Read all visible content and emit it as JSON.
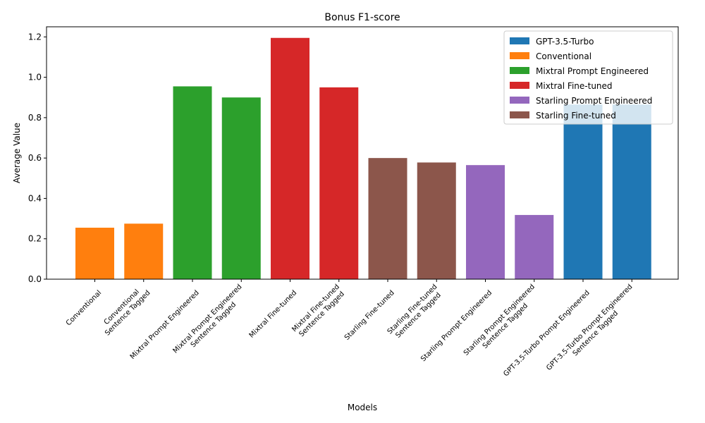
{
  "chart_data": {
    "type": "bar",
    "title": "Bonus F1-score",
    "xlabel": "Models",
    "ylabel": "Average Value",
    "ylim": [
      0,
      1.25
    ],
    "yticks": [
      "0.0",
      "0.2",
      "0.4",
      "0.6",
      "0.8",
      "1.0",
      "1.2"
    ],
    "ytick_values": [
      0,
      0.2,
      0.4,
      0.6,
      0.8,
      1.0,
      1.2
    ],
    "grid": false,
    "legend_position": "top-right",
    "groups": [
      {
        "name": "GPT-3.5-Turbo",
        "color": "#1f77b4"
      },
      {
        "name": "Conventional",
        "color": "#ff7f0e"
      },
      {
        "name": "Mixtral Prompt Engineered",
        "color": "#2ca02c"
      },
      {
        "name": "Mixtral Fine-tuned",
        "color": "#d62728"
      },
      {
        "name": "Starling Prompt Engineered",
        "color": "#9467bd"
      },
      {
        "name": "Starling Fine-tuned",
        "color": "#8c564b"
      }
    ],
    "bars": [
      {
        "label": [
          "Conventional"
        ],
        "value": 0.255,
        "group": 1
      },
      {
        "label": [
          "Conventional",
          "Sentence Tagged"
        ],
        "value": 0.275,
        "group": 1
      },
      {
        "label": [
          "Mixtral Prompt Engineered"
        ],
        "value": 0.955,
        "group": 2
      },
      {
        "label": [
          "Mixtral Prompt Engineered",
          "Sentence Tagged"
        ],
        "value": 0.9,
        "group": 2
      },
      {
        "label": [
          "Mixtral Fine-tuned"
        ],
        "value": 1.195,
        "group": 3
      },
      {
        "label": [
          "Mixtral Fine-tuned",
          "Sentence Tagged"
        ],
        "value": 0.95,
        "group": 3
      },
      {
        "label": [
          "Starling Fine-tuned"
        ],
        "value": 0.6,
        "group": 5
      },
      {
        "label": [
          "Starling Fine-tuned",
          "Sentence Tagged"
        ],
        "value": 0.578,
        "group": 5
      },
      {
        "label": [
          "Starling Prompt Engineered"
        ],
        "value": 0.565,
        "group": 4
      },
      {
        "label": [
          "Starling Prompt Engineered",
          "Sentence Tagged"
        ],
        "value": 0.318,
        "group": 4
      },
      {
        "label": [
          "GPT-3.5-Turbo Prompt Engineered"
        ],
        "value": 0.865,
        "group": 0
      },
      {
        "label": [
          "GPT-3.5-Turbo Prompt Engineered",
          "Sentence Tagged"
        ],
        "value": 0.865,
        "group": 0
      }
    ]
  }
}
